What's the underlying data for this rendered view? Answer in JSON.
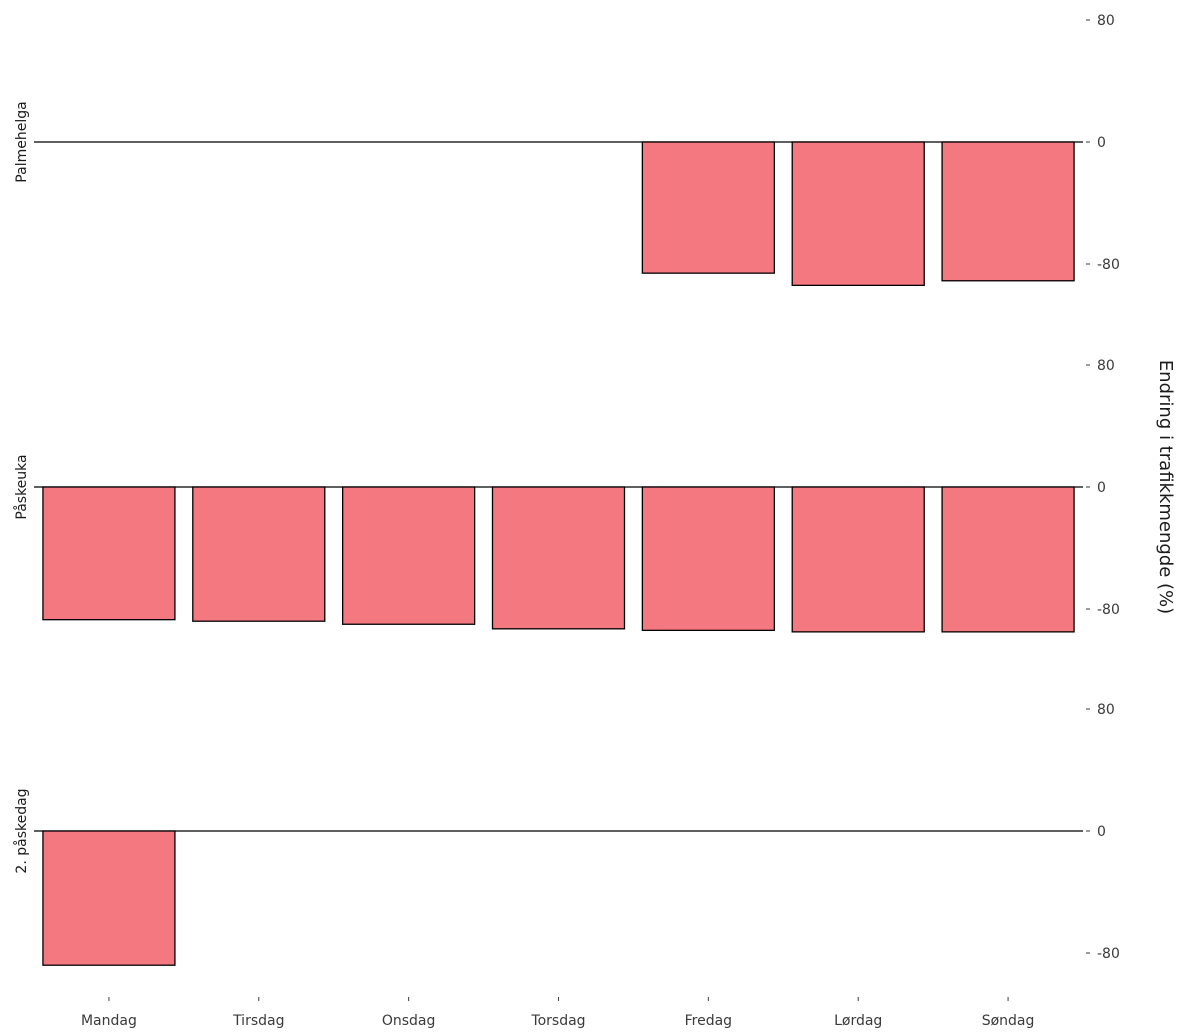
{
  "chart_data": {
    "type": "bar",
    "categories": [
      "Mandag",
      "Tirsdag",
      "Onsdag",
      "Torsdag",
      "Fredag",
      "Lørdag",
      "Søndag"
    ],
    "ylabel": "Endring i trafikkmengde (%)",
    "yticks": [
      -80,
      0,
      80
    ],
    "ylim": [
      -80,
      80
    ],
    "facets": [
      {
        "label": "Palmehelga",
        "values": [
          null,
          null,
          null,
          null,
          -86,
          -94,
          -91
        ]
      },
      {
        "label": "Påskeuka",
        "values": [
          -87,
          -88,
          -90,
          -93,
          -94,
          -95,
          -95
        ]
      },
      {
        "label": "2. påskedag",
        "values": [
          -88,
          null,
          null,
          null,
          null,
          null,
          null
        ]
      }
    ],
    "colors": {
      "bar_fill": "#f47880",
      "bar_stroke": "#000000",
      "zero_line": "#000000"
    },
    "grid": false
  }
}
